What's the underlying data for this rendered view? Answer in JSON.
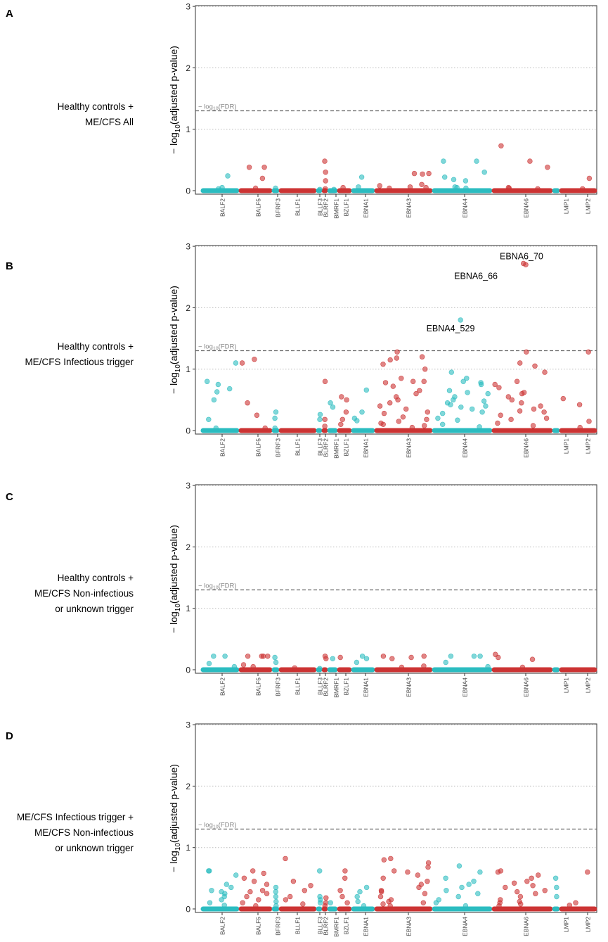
{
  "figure": {
    "ylabel": "− log10(adjusted p-value)",
    "ylabel_main": "− log",
    "ylabel_sub": "10",
    "ylabel_rest": "(adjusted p-value)",
    "fdr_label_prefix": "− log",
    "fdr_label_sub": "10",
    "fdr_label_suffix": "(FDR)",
    "colors": {
      "teal": "#2bbcc0",
      "red": "#cc3333",
      "threshold": "#666666",
      "grid": "#bbbbbb",
      "axis": "#333333"
    }
  },
  "chart_data": [
    {
      "type": "scatter",
      "panel_letter": "A",
      "condition_lines": [
        "Healthy controls +",
        "ME/CFS All"
      ],
      "ylim": [
        0,
        3
      ],
      "yticks": [
        0,
        1,
        2,
        3
      ],
      "fdr_threshold": 1.3,
      "genes": [
        "BALF2",
        "BALF5",
        "BFRF3",
        "BLLF1",
        "BLLF3",
        "BLRF2",
        "BMRF1",
        "BZLF1",
        "EBNA1",
        "EBNA3",
        "EBNA4",
        "EBNA6",
        "LMP1",
        "LMP2"
      ],
      "annotations": [],
      "points": {
        "BALF2": [
          0.24,
          0.05,
          0.03
        ],
        "BALF5": [
          0.38,
          0.38,
          0.2,
          0.04
        ],
        "BFRF3": [
          0.04
        ],
        "BLLF1": [],
        "BLLF3": [
          0.02
        ],
        "BLRF2": [
          0.48,
          0.3,
          0.16,
          0.03
        ],
        "BMRF1": [
          0.02
        ],
        "BZLF1": [
          0.05
        ],
        "EBNA1": [
          0.22,
          0.06
        ],
        "EBNA3": [
          0.28,
          0.28,
          0.27,
          0.1,
          0.08,
          0.06,
          0.05,
          0.04
        ],
        "EBNA4": [
          0.48,
          0.48,
          0.3,
          0.22,
          0.18,
          0.16,
          0.06,
          0.05,
          0.04
        ],
        "EBNA6": [
          0.73,
          0.48,
          0.38,
          0.05,
          0.04,
          0.03
        ],
        "LMP1": [],
        "LMP2": [
          0.2,
          0.03
        ]
      }
    },
    {
      "type": "scatter",
      "panel_letter": "B",
      "condition_lines": [
        "Healthy controls +",
        "ME/CFS Infectious trigger"
      ],
      "ylim": [
        0,
        3
      ],
      "yticks": [
        0,
        1,
        2,
        3
      ],
      "fdr_threshold": 1.3,
      "genes": [
        "BALF2",
        "BALF5",
        "BFRF3",
        "BLLF1",
        "BLLF3",
        "BLRF2",
        "BMRF1",
        "BZLF1",
        "EBNA1",
        "EBNA3",
        "EBNA4",
        "EBNA6",
        "LMP1",
        "LMP2"
      ],
      "annotations": [
        {
          "label": "EBNA6_70",
          "gene": "EBNA6",
          "y": 2.72,
          "point_y": 2.72
        },
        {
          "label": "EBNA6_66",
          "gene": "EBNA6",
          "y": 2.7,
          "point_y": 2.7
        },
        {
          "label": "EBNA4_529",
          "gene": "EBNA4",
          "y": 1.8,
          "point_y": 1.8
        }
      ],
      "points": {
        "BALF2": [
          1.1,
          0.8,
          0.75,
          0.68,
          0.63,
          0.5,
          0.18,
          0.04
        ],
        "BALF5": [
          1.16,
          1.1,
          0.45,
          0.25,
          0.04
        ],
        "BFRF3": [
          0.3,
          0.2,
          0.04
        ],
        "BLLF1": [],
        "BLLF3": [
          0.26,
          0.18
        ],
        "BLRF2": [
          0.8,
          0.18,
          0.07
        ],
        "BMRF1": [
          0.45,
          0.38
        ],
        "BZLF1": [
          0.55,
          0.5,
          0.3,
          0.18,
          0.1
        ],
        "EBNA1": [
          0.66,
          0.3,
          0.2,
          0.16
        ],
        "EBNA3": [
          1.28,
          1.2,
          1.18,
          1.15,
          1.08,
          1.0,
          0.85,
          0.8,
          0.8,
          0.78,
          0.72,
          0.65,
          0.6,
          0.55,
          0.5,
          0.45,
          0.4,
          0.35,
          0.3,
          0.28,
          0.22,
          0.18,
          0.15,
          0.12,
          0.1,
          0.08,
          0.05
        ],
        "EBNA4": [
          1.8,
          0.95,
          0.85,
          0.8,
          0.78,
          0.75,
          0.65,
          0.62,
          0.6,
          0.55,
          0.5,
          0.48,
          0.45,
          0.42,
          0.4,
          0.38,
          0.35,
          0.3,
          0.28,
          0.2,
          0.17,
          0.1,
          0.06
        ],
        "EBNA6": [
          2.72,
          2.7,
          1.28,
          1.1,
          1.05,
          0.95,
          0.8,
          0.75,
          0.7,
          0.62,
          0.6,
          0.55,
          0.5,
          0.45,
          0.4,
          0.35,
          0.32,
          0.3,
          0.25,
          0.2,
          0.18,
          0.12,
          0.08
        ],
        "LMP1": [],
        "LMP2": [
          1.28,
          0.52,
          0.42,
          0.15,
          0.05
        ]
      }
    },
    {
      "type": "scatter",
      "panel_letter": "C",
      "condition_lines": [
        "Healthy controls +",
        "ME/CFS Non-infectious",
        "or unknown trigger"
      ],
      "ylim": [
        0,
        3
      ],
      "yticks": [
        0,
        1,
        2,
        3
      ],
      "fdr_threshold": 1.3,
      "genes": [
        "BALF2",
        "BALF5",
        "BFRF3",
        "BLLF1",
        "BLLF3",
        "BLRF2",
        "BMRF1",
        "BZLF1",
        "EBNA1",
        "EBNA3",
        "EBNA4",
        "EBNA6",
        "LMP1",
        "LMP2"
      ],
      "annotations": [],
      "points": {
        "BALF2": [
          0.22,
          0.22,
          0.1,
          0.05
        ],
        "BALF5": [
          0.22,
          0.22,
          0.22,
          0.22,
          0.08,
          0.05
        ],
        "BFRF3": [
          0.2,
          0.12
        ],
        "BLLF1": [
          0.03
        ],
        "BLLF3": [
          0.02
        ],
        "BLRF2": [
          0.22,
          0.18
        ],
        "BMRF1": [
          0.18
        ],
        "BZLF1": [
          0.2
        ],
        "EBNA1": [
          0.22,
          0.18,
          0.12
        ],
        "EBNA3": [
          0.22,
          0.22,
          0.2,
          0.18,
          0.06,
          0.04
        ],
        "EBNA4": [
          0.22,
          0.22,
          0.22,
          0.12,
          0.05
        ],
        "EBNA6": [
          0.25,
          0.2,
          0.17,
          0.04
        ],
        "LMP1": [],
        "LMP2": []
      }
    },
    {
      "type": "scatter",
      "panel_letter": "D",
      "condition_lines": [
        "ME/CFS Infectious trigger +",
        "ME/CFS Non-infectious",
        "or unknown trigger"
      ],
      "ylim": [
        0,
        3
      ],
      "yticks": [
        0,
        1,
        2,
        3
      ],
      "fdr_threshold": 1.3,
      "genes": [
        "BALF2",
        "BALF5",
        "BFRF3",
        "BLLF1",
        "BLLF3",
        "BLRF2",
        "BMRF1",
        "BZLF1",
        "EBNA1",
        "EBNA3",
        "EBNA4",
        "EBNA6",
        "LMP1",
        "LMP2"
      ],
      "annotations": [],
      "points": {
        "BALF2": [
          0.62,
          0.62,
          0.55,
          0.4,
          0.35,
          0.3,
          0.28,
          0.25,
          0.2,
          0.15,
          0.1,
          0.06
        ],
        "BALF5": [
          0.62,
          0.58,
          0.5,
          0.45,
          0.4,
          0.3,
          0.28,
          0.25,
          0.2,
          0.15,
          0.1,
          0.05
        ],
        "BFRF3": [
          0.35,
          0.28,
          0.2,
          0.12,
          0.05
        ],
        "BLLF1": [
          0.82,
          0.45,
          0.38,
          0.3,
          0.2,
          0.15,
          0.08
        ],
        "BLLF3": [
          0.62,
          0.2,
          0.15,
          0.1
        ],
        "BLRF2": [
          0.18,
          0.1,
          0.05
        ],
        "BMRF1": [
          0.1
        ],
        "BZLF1": [
          0.62,
          0.5,
          0.3,
          0.2,
          0.1
        ],
        "EBNA1": [
          0.35,
          0.28,
          0.2,
          0.12,
          0.05
        ],
        "EBNA3": [
          0.82,
          0.8,
          0.75,
          0.68,
          0.62,
          0.6,
          0.55,
          0.5,
          0.45,
          0.4,
          0.35,
          0.3,
          0.28,
          0.25,
          0.2,
          0.15,
          0.12,
          0.1,
          0.08,
          0.05
        ],
        "EBNA4": [
          0.7,
          0.6,
          0.5,
          0.45,
          0.4,
          0.35,
          0.3,
          0.25,
          0.2,
          0.15,
          0.1,
          0.05
        ],
        "EBNA6": [
          0.62,
          0.6,
          0.55,
          0.5,
          0.45,
          0.42,
          0.38,
          0.35,
          0.3,
          0.28,
          0.25,
          0.2,
          0.15,
          0.12,
          0.1,
          0.08,
          0.05
        ],
        "LMP1": [
          0.5,
          0.35,
          0.2
        ],
        "LMP2": [
          0.6,
          0.1,
          0.06
        ]
      }
    }
  ]
}
